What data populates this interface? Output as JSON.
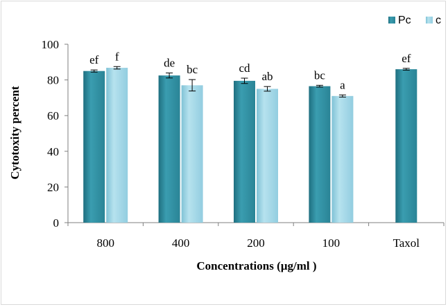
{
  "chart_data": {
    "type": "bar",
    "title": "",
    "categories": [
      "800",
      "400",
      "200",
      "100",
      "Taxol"
    ],
    "series": [
      {
        "name": "Pc",
        "color": "#2e8a9c",
        "values": [
          85,
          82.5,
          79.5,
          76.5,
          86
        ],
        "errors": [
          0.6,
          1.4,
          1.5,
          0.5,
          0.5
        ],
        "letters": [
          "ef",
          "de",
          "cd",
          "bc",
          "ef"
        ]
      },
      {
        "name": "c",
        "color": "#9fd4e4",
        "values": [
          86.8,
          77,
          75,
          71,
          null
        ],
        "errors": [
          0.7,
          3.2,
          1.3,
          0.6,
          null
        ],
        "letters": [
          "f",
          "bc",
          "ab",
          "a",
          ""
        ]
      }
    ],
    "xlabel": "Concentrations (µg/ml )",
    "ylabel": "Cytotoxity percent",
    "ylim": [
      0,
      100
    ],
    "yticks": [
      0,
      20,
      40,
      60,
      80,
      100
    ],
    "legend_position": "top-right",
    "grid": false
  }
}
